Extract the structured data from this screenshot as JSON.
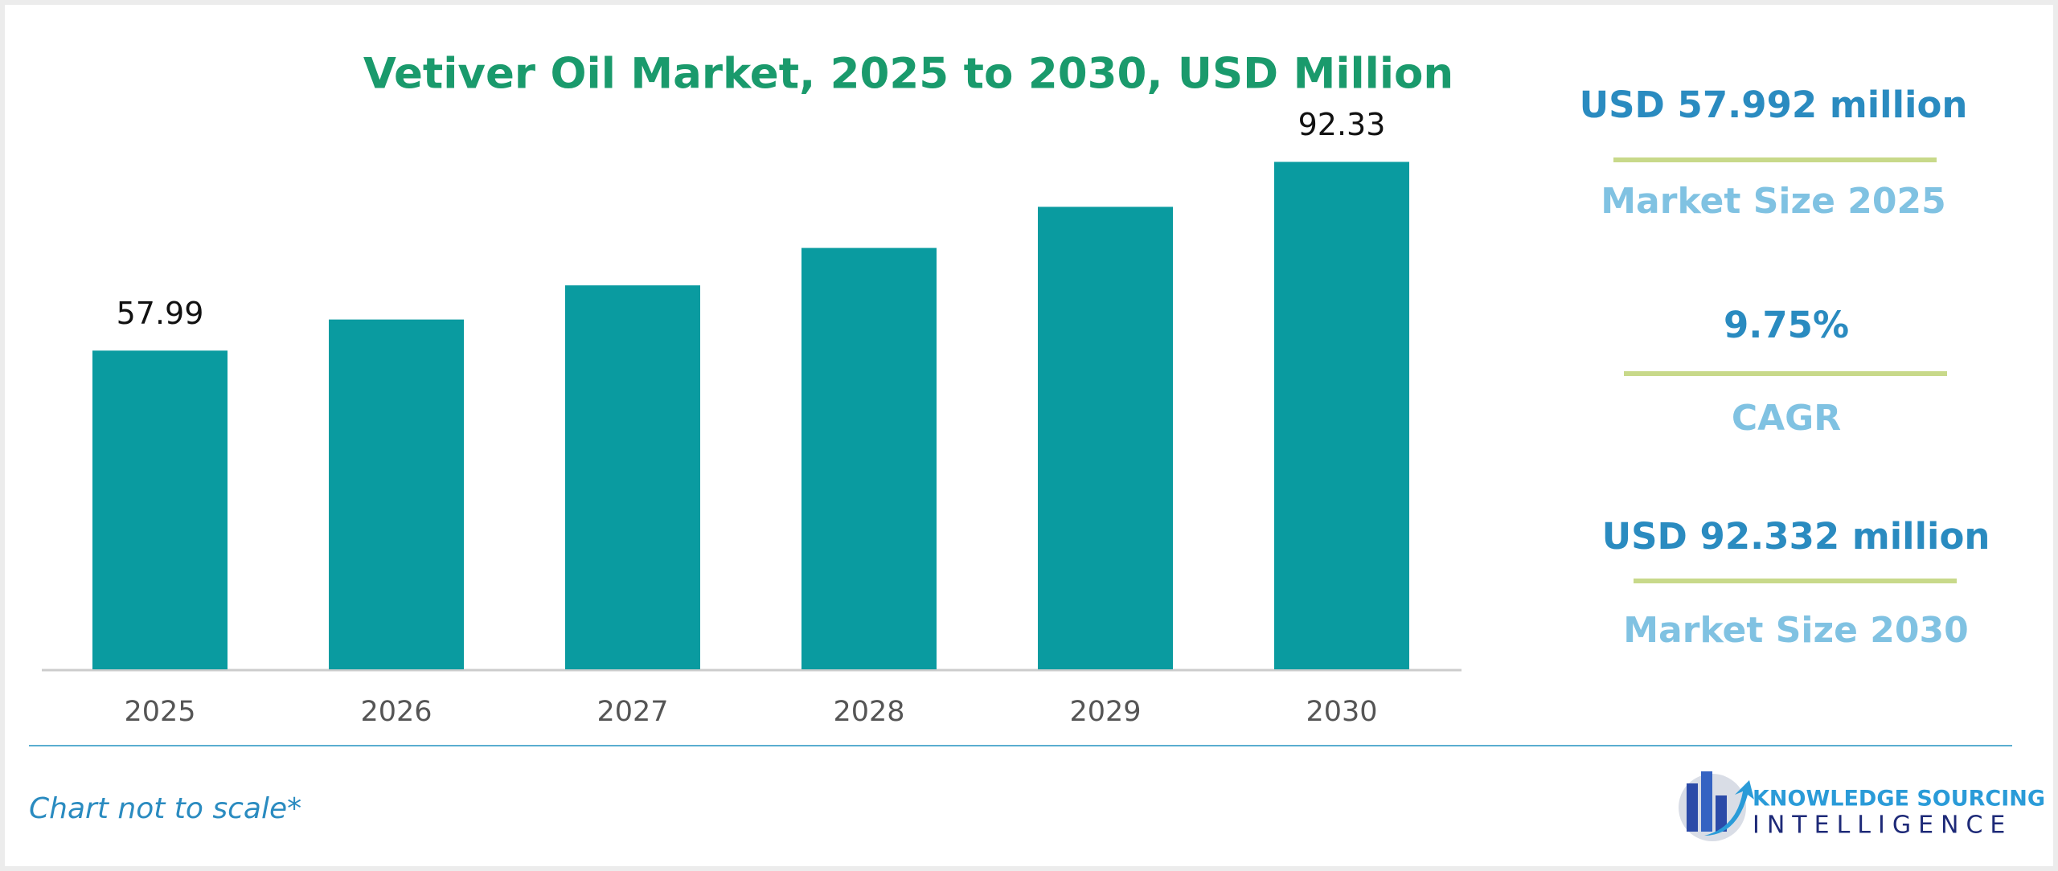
{
  "chart_data": {
    "type": "bar",
    "title": "Vetiver Oil Market, 2025 to 2030, USD Million",
    "categories": [
      "2025",
      "2026",
      "2027",
      "2028",
      "2029",
      "2030"
    ],
    "values": [
      57.99,
      63.65,
      69.86,
      76.67,
      84.15,
      92.33
    ],
    "value_labels": [
      "57.99",
      null,
      null,
      null,
      null,
      "92.33"
    ],
    "color": "#0a9ba0",
    "ylim": [
      0,
      100
    ]
  },
  "kpis": [
    {
      "value": "USD 57.992 million",
      "label": "Market Size 2025"
    },
    {
      "value": "9.75%",
      "label": "CAGR"
    },
    {
      "value": "USD 92.332 million",
      "label": "Market Size 2030"
    }
  ],
  "footnote": "Chart not to scale*",
  "logo": {
    "line1": "KNOWLEDGE SOURCING",
    "line2": "INTELLIGENCE"
  }
}
